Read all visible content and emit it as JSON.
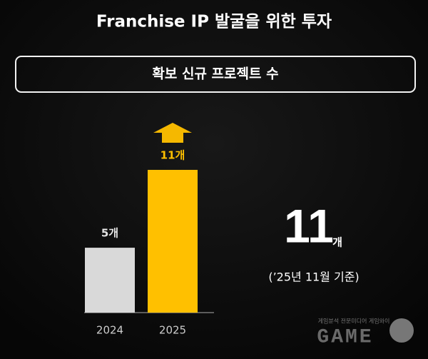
{
  "chart_data": {
    "type": "bar",
    "title": "Franchise IP 발굴을 위한 투자",
    "subtitle": "확보 신규 프로젝트 수",
    "categories": [
      "2024",
      "2025"
    ],
    "values": [
      5,
      11
    ],
    "value_labels": [
      "5개",
      "11개"
    ],
    "colors": [
      "#d9d9d9",
      "#ffc000"
    ],
    "label_colors": [
      "#e6e6e6",
      "#ffc000"
    ],
    "highlight": {
      "number": 11,
      "unit": "개",
      "note": "(’25년 11월 기준)"
    }
  },
  "watermark": {
    "tagline": "게임분석 전문미디어 게임와이",
    "logo": "GAME"
  }
}
